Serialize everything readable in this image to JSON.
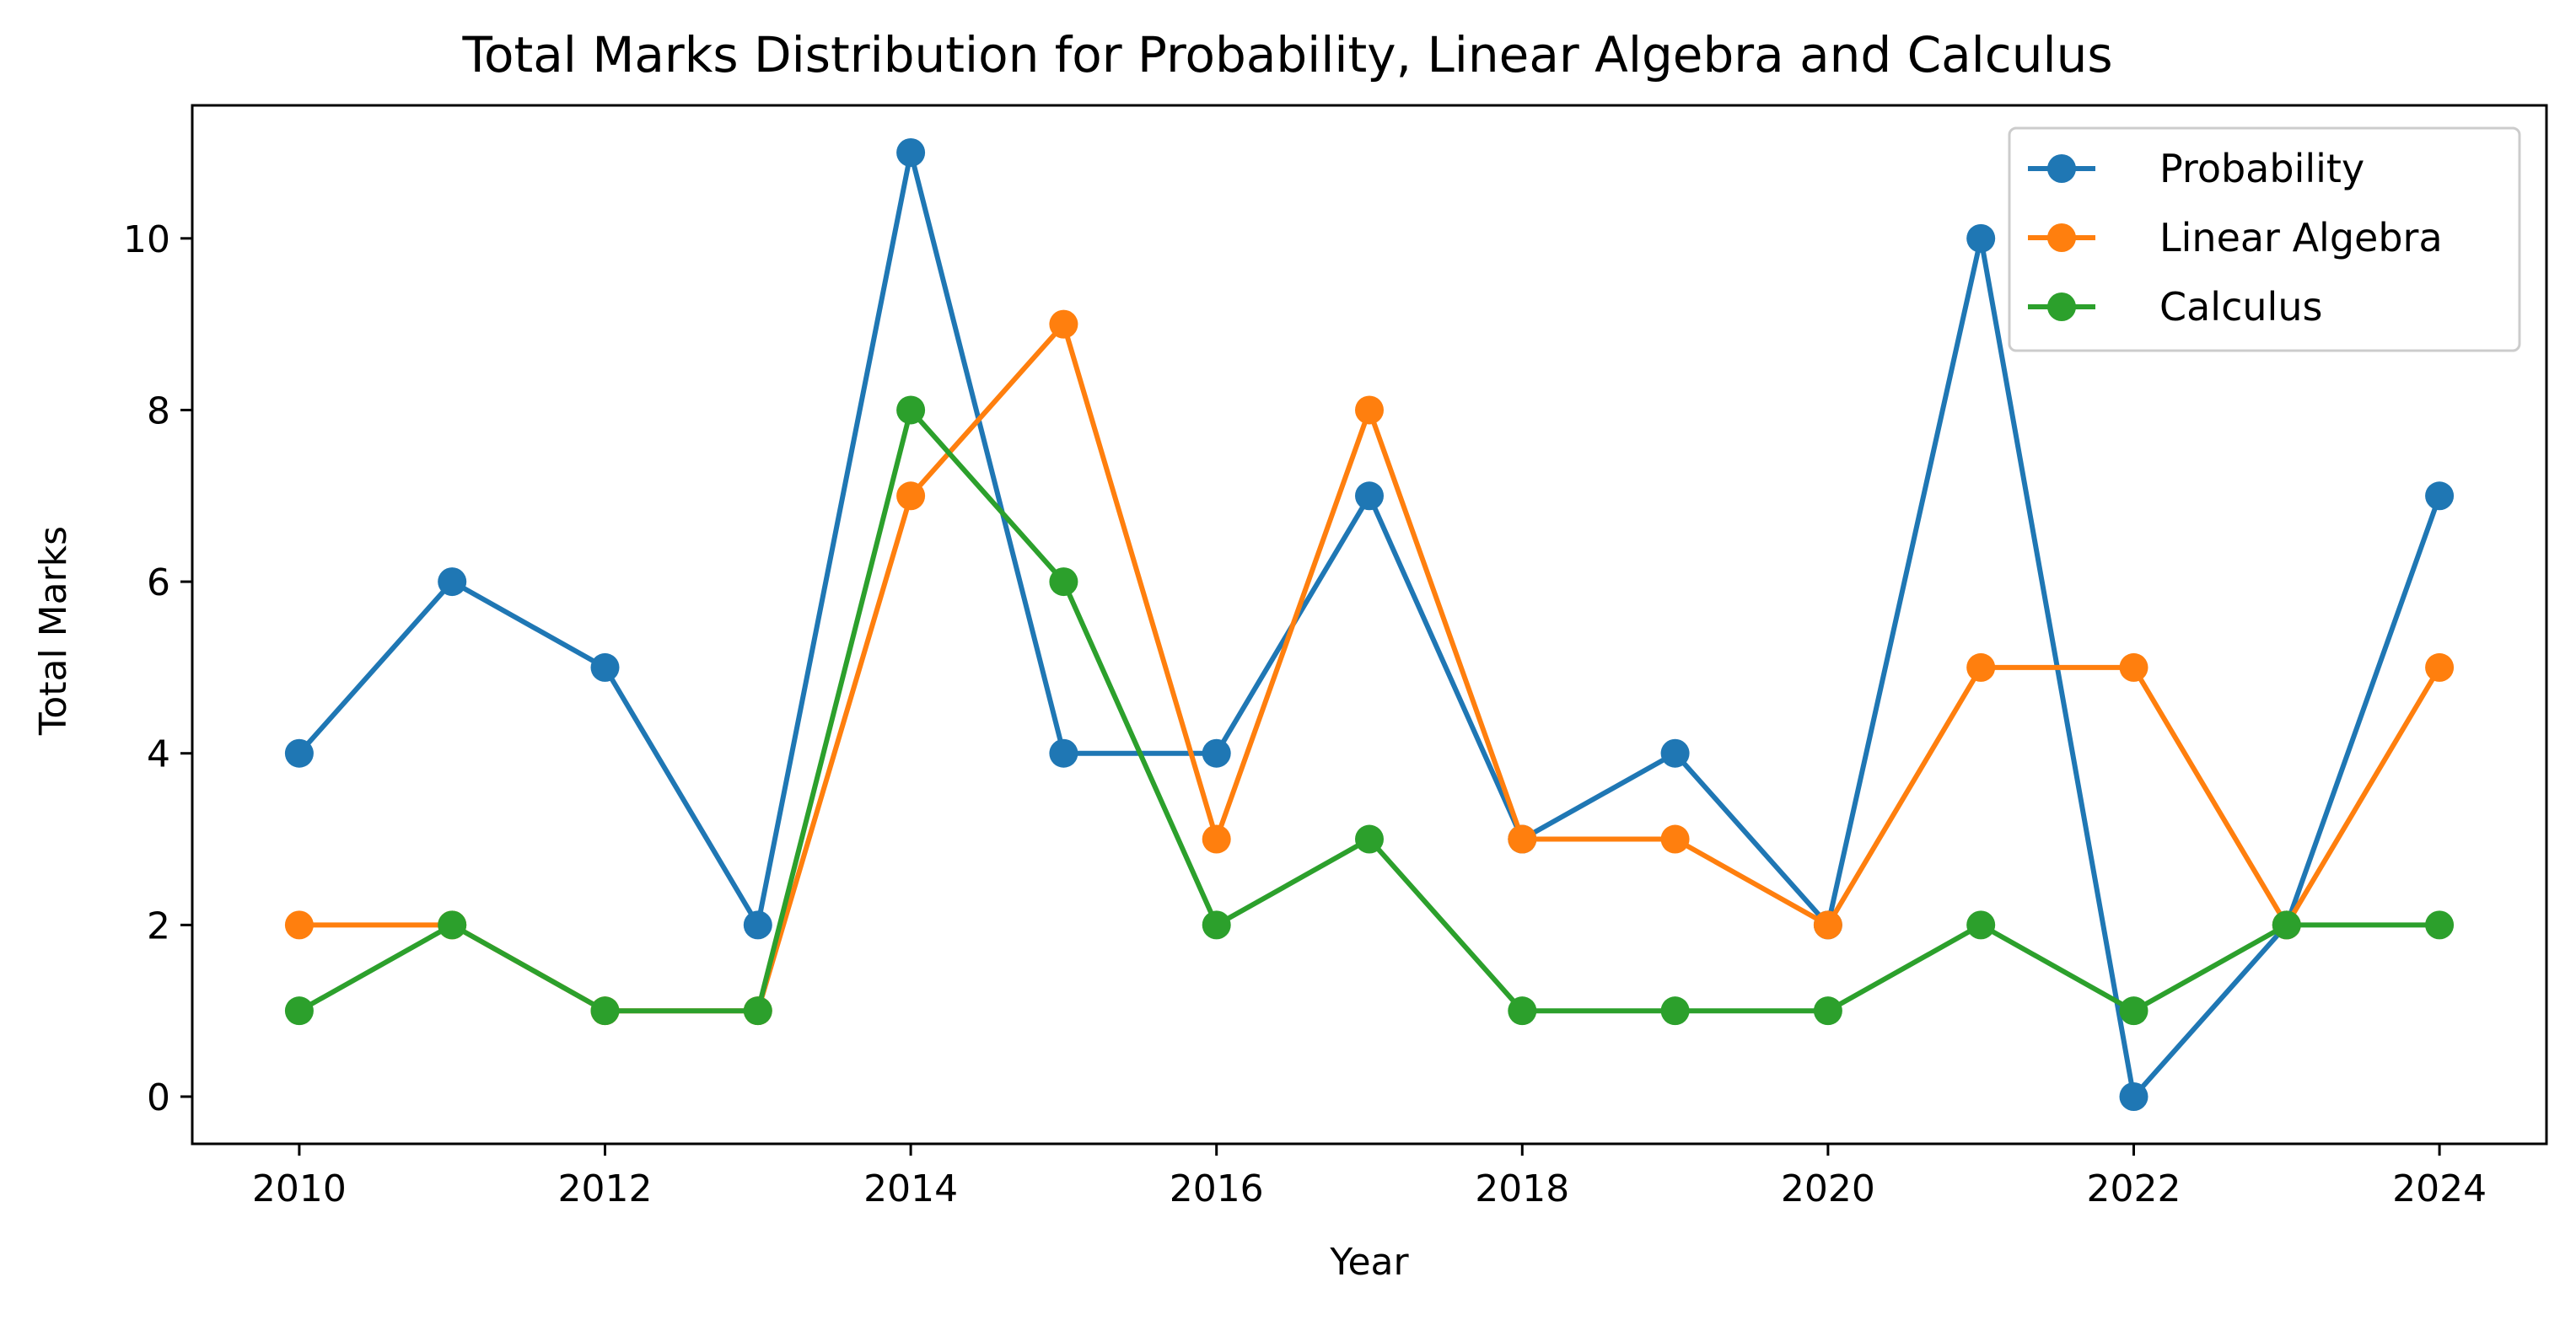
{
  "chart_data": {
    "type": "line",
    "title": "Total Marks Distribution for Probability, Linear Algebra and Calculus",
    "xlabel": "Year",
    "ylabel": "Total Marks",
    "x": [
      2010,
      2011,
      2012,
      2013,
      2014,
      2015,
      2016,
      2017,
      2018,
      2019,
      2020,
      2021,
      2022,
      2023,
      2024
    ],
    "xlim": [
      2009.3,
      2024.7
    ],
    "ylim": [
      -0.55,
      11.55
    ],
    "x_ticks": [
      2010,
      2012,
      2014,
      2016,
      2018,
      2020,
      2022,
      2024
    ],
    "y_ticks": [
      0,
      2,
      4,
      6,
      8,
      10
    ],
    "grid": false,
    "legend_position": "top-right",
    "series": [
      {
        "name": "Probability",
        "color": "#1f77b4",
        "values": [
          4,
          6,
          5,
          2,
          11,
          4,
          4,
          7,
          3,
          4,
          2,
          10,
          0,
          2,
          7
        ]
      },
      {
        "name": "Linear Algebra",
        "color": "#ff7f0e",
        "values": [
          2,
          2,
          1,
          1,
          7,
          9,
          3,
          8,
          3,
          3,
          2,
          5,
          5,
          2,
          5
        ]
      },
      {
        "name": "Calculus",
        "color": "#2ca02c",
        "values": [
          1,
          2,
          1,
          1,
          8,
          6,
          2,
          3,
          1,
          1,
          1,
          2,
          1,
          2,
          2
        ]
      }
    ]
  }
}
